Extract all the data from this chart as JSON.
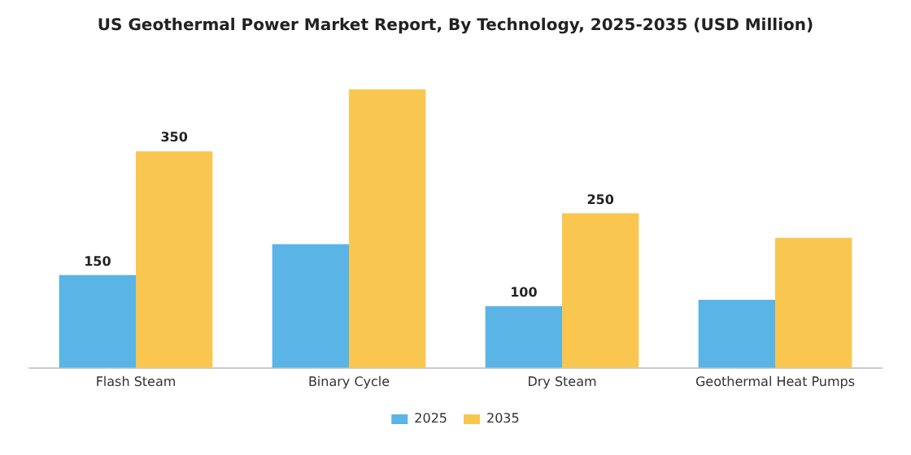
{
  "chart_data": {
    "type": "bar",
    "title": "US Geothermal Power Market Report, By Technology, 2025-2035 (USD Million)",
    "categories": [
      "Flash Steam",
      "Binary Cycle",
      "Dry Steam",
      "Geothermal Heat Pumps"
    ],
    "series": [
      {
        "name": "2025",
        "color": "#5ab4e5",
        "values": [
          150,
          200,
          100,
          110
        ],
        "value_labels": [
          "150",
          null,
          "100",
          null
        ]
      },
      {
        "name": "2035",
        "color": "#f9c64f",
        "values": [
          350,
          450,
          250,
          210
        ],
        "value_labels": [
          "350",
          null,
          "250",
          null
        ]
      }
    ],
    "legend": "bottom",
    "grid": false
  }
}
